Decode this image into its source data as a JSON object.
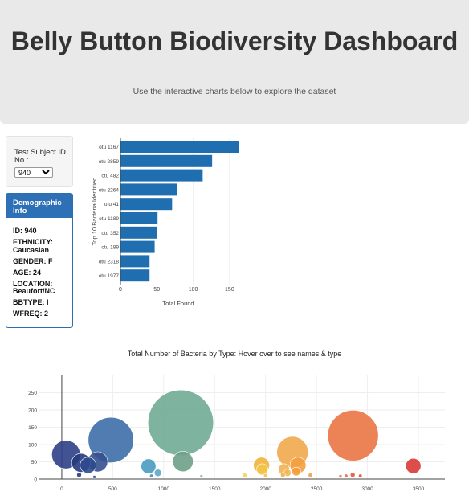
{
  "header": {
    "title": "Belly Button Biodiversity Dashboard",
    "subtitle": "Use the interactive charts below to explore the dataset"
  },
  "selector": {
    "label": "Test Subject ID No.:",
    "selected": "940"
  },
  "demographics": {
    "title": "Demographic Info",
    "rows": [
      "ID: 940",
      "ETHNICITY: Caucasian",
      "GENDER: F",
      "AGE: 24",
      "LOCATION: Beaufort/NC",
      "BBTYPE: I",
      "WFREQ: 2"
    ]
  },
  "colors": {
    "bar": "#1f6fb0",
    "panel_header": "#2d70b5"
  },
  "chart_data": [
    {
      "type": "bar",
      "orientation": "horizontal",
      "categories": [
        "otu 1167",
        "otu 2859",
        "otu 482",
        "otu 2264",
        "otu 41",
        "otu 1189",
        "otu 352",
        "otu 189",
        "otu 2318",
        "otu 1977"
      ],
      "values": [
        163,
        126,
        113,
        78,
        71,
        51,
        50,
        47,
        40,
        40
      ],
      "xlabel": "Total Found",
      "ylabel": "Top 10 Bacteria Identified",
      "xticks": [
        0,
        50,
        100,
        150
      ],
      "xlim": [
        0,
        170
      ]
    },
    {
      "type": "scatter",
      "title": "Total Number of Bacteria by Type:  Hover over to see names & type",
      "x": [
        41,
        189,
        258,
        352,
        482,
        1167,
        1189,
        851,
        943,
        1960,
        1968,
        2264,
        2318,
        2859,
        3450,
        1795,
        2000,
        2180,
        2215,
        2440,
        2735,
        2790,
        2855,
        2930,
        880,
        170,
        320,
        1370,
        2300,
        2170
      ],
      "y": [
        71,
        47,
        40,
        50,
        113,
        163,
        51,
        37,
        18,
        40,
        28,
        78,
        40,
        126,
        38,
        11,
        10,
        28,
        18,
        11,
        8,
        9,
        12,
        9,
        9,
        12,
        6,
        8,
        22,
        12
      ],
      "colors": [
        "#2e3f86",
        "#263b7e",
        "#2f4a8d",
        "#35508f",
        "#3d6ea8",
        "#6fab95",
        "#6ea088",
        "#4a9bc0",
        "#5fa7c6",
        "#f0b43c",
        "#f2c843",
        "#f1a84a",
        "#f3a03f",
        "#ea7645",
        "#d93b37",
        "#f6d35e",
        "#f5c350",
        "#f4b153",
        "#f2b85a",
        "#eda04f",
        "#e86e42",
        "#e56e3f",
        "#e5573a",
        "#de4d35",
        "#4a90b5",
        "#2e3a80",
        "#3a5a9d",
        "#8bbea0",
        "#f39d3b",
        "#f2b24a"
      ],
      "xticks": [
        0,
        500,
        1000,
        1500,
        2000,
        2500,
        3000,
        3500
      ],
      "yticks": [
        0,
        50,
        100,
        150,
        200,
        250
      ],
      "xlim": [
        -370,
        3760
      ],
      "ylim": [
        0,
        300
      ]
    }
  ]
}
